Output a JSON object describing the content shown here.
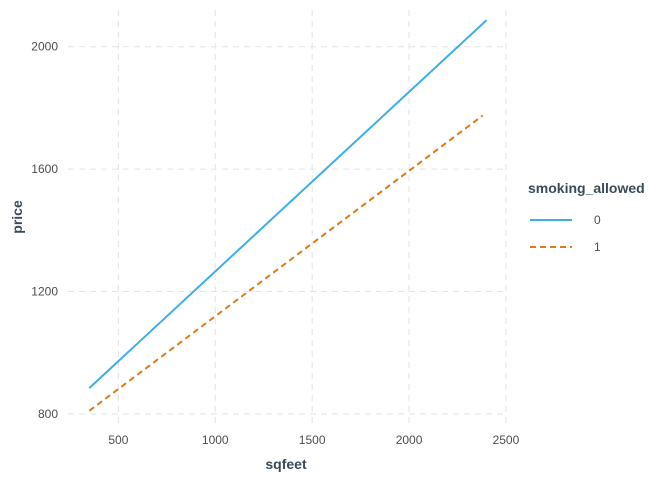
{
  "chart_data": {
    "type": "line",
    "xlabel": "sqfeet",
    "ylabel": "price",
    "xlim": [
      240,
      2490
    ],
    "ylim": [
      770,
      2120
    ],
    "x_ticks": [
      500,
      1000,
      1500,
      2000,
      2500
    ],
    "y_ticks": [
      800,
      1200,
      1600,
      2000
    ],
    "grid": true,
    "grid_style": "dashed",
    "legend": {
      "title": "smoking_allowed",
      "placement": "right"
    },
    "series": [
      {
        "name": "0",
        "color": "#3daee9",
        "line_style": "solid",
        "x": [
          350,
          2400
        ],
        "y": [
          884,
          2087
        ]
      },
      {
        "name": "1",
        "color": "#e07b12",
        "line_style": "dashed",
        "x": [
          350,
          2380
        ],
        "y": [
          810,
          1775
        ]
      }
    ]
  }
}
